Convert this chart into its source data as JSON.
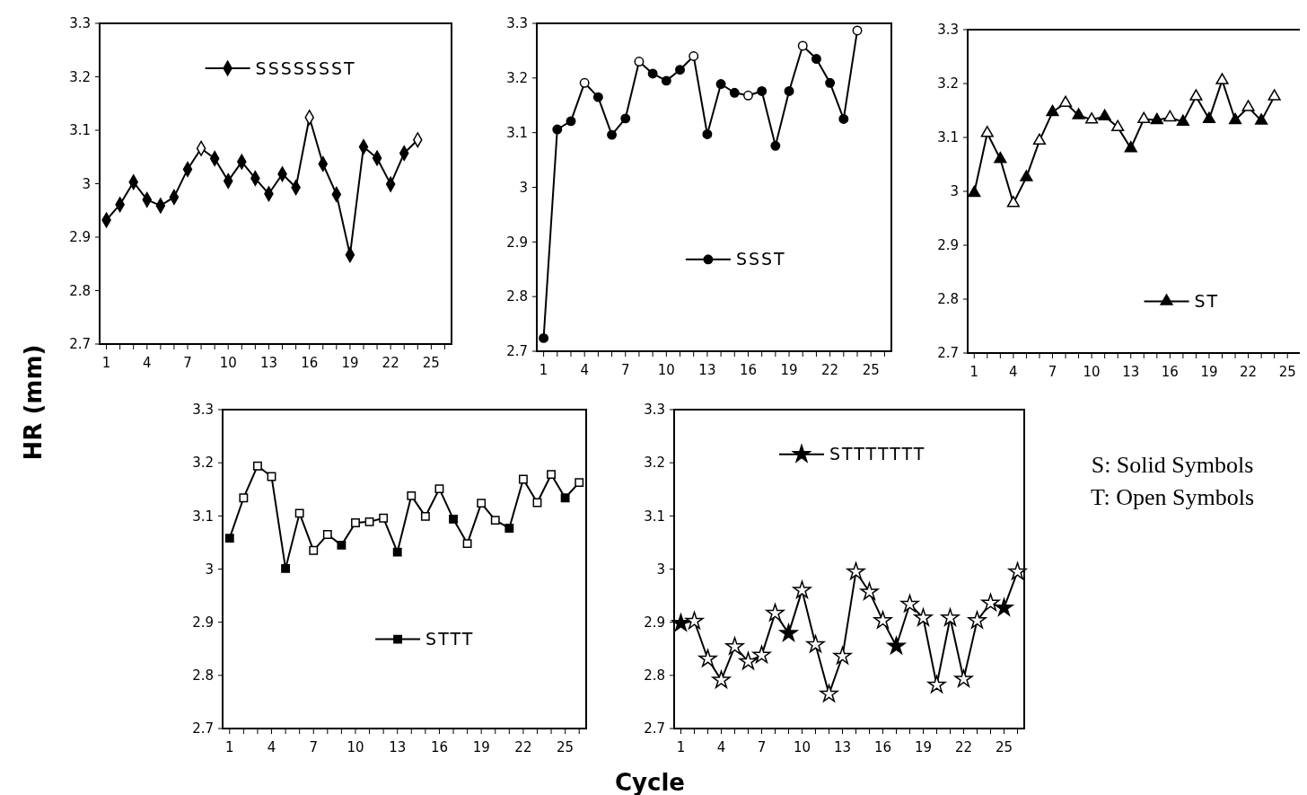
{
  "chart_data": [
    {
      "type": "line",
      "ylabel": "HR (mm)",
      "x": [
        1,
        2,
        3,
        4,
        5,
        6,
        7,
        8,
        9,
        10,
        11,
        12,
        13,
        14,
        15,
        16,
        17,
        18,
        19,
        20,
        21,
        22,
        23,
        24
      ],
      "xlim": [
        0.5,
        26.5
      ],
      "xticks": [
        1,
        {
          "value": 2,
          "label": null
        },
        {
          "value": 3,
          "label": null
        },
        4,
        {
          "value": 5,
          "label": null
        },
        {
          "value": 6,
          "label": null
        },
        7,
        {
          "value": 8,
          "label": null
        },
        {
          "value": 9,
          "label": null
        },
        10,
        {
          "value": 11,
          "label": null
        },
        {
          "value": 12,
          "label": null
        },
        13,
        {
          "value": 14,
          "label": null
        },
        {
          "value": 15,
          "label": null
        },
        16,
        {
          "value": 17,
          "label": null
        },
        {
          "value": 18,
          "label": null
        },
        19,
        {
          "value": 20,
          "label": null
        },
        {
          "value": 21,
          "label": null
        },
        22,
        {
          "value": 23,
          "label": null
        },
        {
          "value": 24,
          "label": null
        },
        25,
        {
          "value": 26,
          "label": null
        }
      ],
      "ylim": [
        2.7,
        3.3
      ],
      "yticks": [
        2.7,
        2.8,
        2.9,
        3,
        3.1,
        3.2,
        3.3
      ],
      "marker": "diamond",
      "legend": "top",
      "series": [
        {
          "name": "SSSSSSST",
          "color": "#000000",
          "values": [
            2.932,
            2.961,
            3.003,
            2.97,
            2.959,
            2.975,
            3.027,
            3.066,
            3.047,
            3.005,
            3.041,
            3.01,
            2.981,
            3.018,
            2.993,
            3.124,
            3.037,
            2.98,
            2.867,
            3.069,
            3.048,
            2.999,
            3.057,
            3.082
          ],
          "colors": [
            "#000000",
            "#000000",
            "#000000",
            "#000000",
            "#000000",
            "#000000",
            "#000000",
            "#ffffff",
            "#000000",
            "#000000",
            "#000000",
            "#000000",
            "#000000",
            "#000000",
            "#000000",
            "#ffffff",
            "#000000",
            "#000000",
            "#000000",
            "#000000",
            "#000000",
            "#000000",
            "#000000",
            "#ffffff"
          ]
        }
      ]
    },
    {
      "type": "line",
      "x": [
        1,
        2,
        3,
        4,
        5,
        6,
        7,
        8,
        9,
        10,
        11,
        12,
        13,
        14,
        15,
        16,
        17,
        18,
        19,
        20,
        21,
        22,
        23,
        24
      ],
      "xlim": [
        0.5,
        26.5
      ],
      "xticks": [
        1,
        {
          "value": 2,
          "label": null
        },
        {
          "value": 3,
          "label": null
        },
        4,
        {
          "value": 5,
          "label": null
        },
        {
          "value": 6,
          "label": null
        },
        7,
        {
          "value": 8,
          "label": null
        },
        {
          "value": 9,
          "label": null
        },
        10,
        {
          "value": 11,
          "label": null
        },
        {
          "value": 12,
          "label": null
        },
        13,
        {
          "value": 14,
          "label": null
        },
        {
          "value": 15,
          "label": null
        },
        16,
        {
          "value": 17,
          "label": null
        },
        {
          "value": 18,
          "label": null
        },
        19,
        {
          "value": 20,
          "label": null
        },
        {
          "value": 21,
          "label": null
        },
        22,
        {
          "value": 23,
          "label": null
        },
        {
          "value": 24,
          "label": null
        },
        25,
        {
          "value": 26,
          "label": null
        }
      ],
      "ylim": [
        2.7,
        3.3
      ],
      "yticks": [
        2.7,
        2.8,
        2.9,
        3,
        3.1,
        3.2,
        3.3
      ],
      "marker": "circle",
      "legend": "bottom",
      "series": [
        {
          "name": "SSST",
          "color": "#000000",
          "values": [
            2.724,
            3.106,
            3.121,
            3.191,
            3.165,
            3.096,
            3.126,
            3.23,
            3.208,
            3.195,
            3.215,
            3.24,
            3.097,
            3.189,
            3.173,
            3.168,
            3.176,
            3.076,
            3.176,
            3.259,
            3.235,
            3.191,
            3.125,
            3.287
          ],
          "colors": [
            "#000000",
            "#000000",
            "#000000",
            "#ffffff",
            "#000000",
            "#000000",
            "#000000",
            "#ffffff",
            "#000000",
            "#000000",
            "#000000",
            "#ffffff",
            "#000000",
            "#000000",
            "#000000",
            "#ffffff",
            "#000000",
            "#000000",
            "#000000",
            "#ffffff",
            "#000000",
            "#000000",
            "#000000",
            "#ffffff"
          ]
        }
      ]
    },
    {
      "type": "line",
      "x": [
        1,
        2,
        3,
        4,
        5,
        6,
        7,
        8,
        9,
        10,
        11,
        12,
        13,
        14,
        15,
        16,
        17,
        18,
        19,
        20,
        21,
        22,
        23,
        24
      ],
      "xlim": [
        0.5,
        26.5
      ],
      "xticks": [
        1,
        {
          "value": 2,
          "label": null
        },
        {
          "value": 3,
          "label": null
        },
        4,
        {
          "value": 5,
          "label": null
        },
        {
          "value": 6,
          "label": null
        },
        7,
        {
          "value": 8,
          "label": null
        },
        {
          "value": 9,
          "label": null
        },
        10,
        {
          "value": 11,
          "label": null
        },
        {
          "value": 12,
          "label": null
        },
        13,
        {
          "value": 14,
          "label": null
        },
        {
          "value": 15,
          "label": null
        },
        16,
        {
          "value": 17,
          "label": null
        },
        {
          "value": 18,
          "label": null
        },
        19,
        {
          "value": 20,
          "label": null
        },
        {
          "value": 21,
          "label": null
        },
        22,
        {
          "value": 23,
          "label": null
        },
        {
          "value": 24,
          "label": null
        },
        25,
        {
          "value": 26,
          "label": null
        }
      ],
      "ylim": [
        2.7,
        3.3
      ],
      "yticks": [
        2.7,
        2.8,
        2.9,
        3,
        3.1,
        3.2,
        3.3
      ],
      "marker": "triangle",
      "legend": "bottom right",
      "series": [
        {
          "name": "ST",
          "color": "#000000",
          "values": [
            2.997,
            3.108,
            3.06,
            2.978,
            3.026,
            3.094,
            3.147,
            3.164,
            3.141,
            3.133,
            3.139,
            3.119,
            3.08,
            3.134,
            3.132,
            3.137,
            3.129,
            3.176,
            3.134,
            3.206,
            3.132,
            3.156,
            3.131,
            3.176
          ],
          "colors": [
            "#000000",
            "#ffffff",
            "#000000",
            "#ffffff",
            "#000000",
            "#ffffff",
            "#000000",
            "#ffffff",
            "#000000",
            "#ffffff",
            "#000000",
            "#ffffff",
            "#000000",
            "#ffffff",
            "#000000",
            "#ffffff",
            "#000000",
            "#ffffff",
            "#000000",
            "#ffffff",
            "#000000",
            "#ffffff",
            "#000000",
            "#ffffff"
          ]
        }
      ]
    },
    {
      "type": "line",
      "xlabel": "Cycle",
      "x": [
        1,
        2,
        3,
        4,
        5,
        6,
        7,
        8,
        9,
        10,
        11,
        12,
        13,
        14,
        15,
        16,
        17,
        18,
        19,
        20,
        21,
        22,
        23,
        24,
        25,
        26
      ],
      "xlim": [
        0.5,
        26.5
      ],
      "xticks": [
        1,
        {
          "value": 2,
          "label": null
        },
        {
          "value": 3,
          "label": null
        },
        4,
        {
          "value": 5,
          "label": null
        },
        {
          "value": 6,
          "label": null
        },
        7,
        {
          "value": 8,
          "label": null
        },
        {
          "value": 9,
          "label": null
        },
        10,
        {
          "value": 11,
          "label": null
        },
        {
          "value": 12,
          "label": null
        },
        13,
        {
          "value": 14,
          "label": null
        },
        {
          "value": 15,
          "label": null
        },
        16,
        {
          "value": 17,
          "label": null
        },
        {
          "value": 18,
          "label": null
        },
        19,
        {
          "value": 20,
          "label": null
        },
        {
          "value": 21,
          "label": null
        },
        22,
        {
          "value": 23,
          "label": null
        },
        {
          "value": 24,
          "label": null
        },
        25,
        {
          "value": 26,
          "label": null
        }
      ],
      "ylim": [
        2.7,
        3.3
      ],
      "yticks": [
        2.7,
        2.8,
        2.9,
        3,
        3.1,
        3.2,
        3.3
      ],
      "marker": "square",
      "legend": "bottom",
      "series": [
        {
          "name": "STTT",
          "color": "#000000",
          "values": [
            3.058,
            3.134,
            3.194,
            3.174,
            3.001,
            3.105,
            3.035,
            3.065,
            3.045,
            3.087,
            3.089,
            3.096,
            3.032,
            3.138,
            3.099,
            3.151,
            3.094,
            3.048,
            3.124,
            3.092,
            3.077,
            3.169,
            3.125,
            3.178,
            3.134,
            3.163
          ],
          "colors": [
            "#000000",
            "#ffffff",
            "#ffffff",
            "#ffffff",
            "#000000",
            "#ffffff",
            "#ffffff",
            "#ffffff",
            "#000000",
            "#ffffff",
            "#ffffff",
            "#ffffff",
            "#000000",
            "#ffffff",
            "#ffffff",
            "#ffffff",
            "#000000",
            "#ffffff",
            "#ffffff",
            "#ffffff",
            "#000000",
            "#ffffff",
            "#ffffff",
            "#ffffff",
            "#000000",
            "#ffffff"
          ]
        }
      ]
    },
    {
      "type": "line",
      "x": [
        1,
        2,
        3,
        4,
        5,
        6,
        7,
        8,
        9,
        10,
        11,
        12,
        13,
        14,
        15,
        16,
        17,
        18,
        19,
        20,
        21,
        22,
        23,
        24,
        25,
        26
      ],
      "xlim": [
        0.5,
        26.5
      ],
      "xticks": [
        1,
        {
          "value": 2,
          "label": null
        },
        {
          "value": 3,
          "label": null
        },
        4,
        {
          "value": 5,
          "label": null
        },
        {
          "value": 6,
          "label": null
        },
        7,
        {
          "value": 8,
          "label": null
        },
        {
          "value": 9,
          "label": null
        },
        10,
        {
          "value": 11,
          "label": null
        },
        {
          "value": 12,
          "label": null
        },
        13,
        {
          "value": 14,
          "label": null
        },
        {
          "value": 15,
          "label": null
        },
        16,
        {
          "value": 17,
          "label": null
        },
        {
          "value": 18,
          "label": null
        },
        19,
        {
          "value": 20,
          "label": null
        },
        {
          "value": 21,
          "label": null
        },
        22,
        {
          "value": 23,
          "label": null
        },
        {
          "value": 24,
          "label": null
        },
        25,
        {
          "value": 26,
          "label": null
        }
      ],
      "ylim": [
        2.7,
        3.3
      ],
      "yticks": [
        2.7,
        2.8,
        2.9,
        3,
        3.1,
        3.2,
        3.3
      ],
      "marker": "star",
      "legend": "top",
      "annotations": [
        "S: Solid Symbols",
        "T: Open Symbols"
      ],
      "series": [
        {
          "name": "STTTTTTT",
          "color": "#000000",
          "values": [
            2.898,
            2.902,
            2.831,
            2.791,
            2.854,
            2.826,
            2.838,
            2.917,
            2.879,
            2.96,
            2.858,
            2.765,
            2.836,
            2.995,
            2.957,
            2.903,
            2.855,
            2.934,
            2.908,
            2.782,
            2.908,
            2.793,
            2.903,
            2.936,
            2.927,
            2.995
          ],
          "colors": [
            "#000000",
            "#ffffff",
            "#ffffff",
            "#ffffff",
            "#ffffff",
            "#ffffff",
            "#ffffff",
            "#ffffff",
            "#000000",
            "#ffffff",
            "#ffffff",
            "#ffffff",
            "#ffffff",
            "#ffffff",
            "#ffffff",
            "#ffffff",
            "#000000",
            "#ffffff",
            "#ffffff",
            "#ffffff",
            "#ffffff",
            "#ffffff",
            "#ffffff",
            "#ffffff",
            "#000000",
            "#ffffff"
          ]
        }
      ]
    }
  ]
}
